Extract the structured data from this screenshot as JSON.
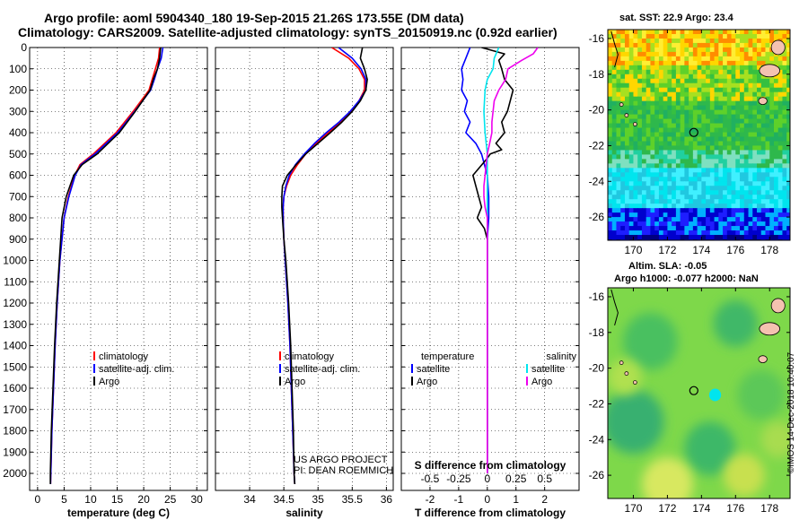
{
  "header": {
    "title_line1": "Argo profile: aoml 5904340_180 19-Sep-2015 21.26S 173.55E (DM data)",
    "title_line2": "Climatology: CARS2009. Satellite-adjusted climatology: synTS_20150919.nc (0.92d earlier)"
  },
  "colors": {
    "climatology": "#ff0000",
    "satellite": "#0000ff",
    "argo": "#000000",
    "satellite_salinity": "#00e5ee",
    "argo_salinity": "#ee00ee"
  },
  "pressure_axis": {
    "ticks": [
      0,
      100,
      200,
      300,
      400,
      500,
      600,
      700,
      800,
      900,
      1000,
      1100,
      1200,
      1300,
      1400,
      1500,
      1600,
      1700,
      1800,
      1900,
      2000
    ],
    "range": [
      0,
      2080
    ]
  },
  "chart_data": [
    {
      "type": "line",
      "id": "temperature",
      "xlabel": "temperature (deg C)",
      "xlim": [
        -1.5,
        32
      ],
      "x_ticks": [
        0,
        5,
        10,
        15,
        20,
        25,
        30
      ],
      "y": [
        0,
        50,
        100,
        150,
        200,
        300,
        400,
        500,
        550,
        600,
        700,
        800,
        1000,
        1200,
        1400,
        1600,
        1800,
        2000,
        2050
      ],
      "series": [
        {
          "name": "climatology",
          "legend": "climatology",
          "color": "#ff0000",
          "x": [
            23.0,
            22.8,
            22.2,
            21.6,
            21.0,
            18.0,
            14.8,
            10.5,
            8.0,
            7.0,
            5.8,
            5.0,
            4.2,
            3.7,
            3.3,
            3.0,
            2.7,
            2.5,
            2.45
          ]
        },
        {
          "name": "satellite-adj. clim.",
          "legend": "satellite-adj. clim.",
          "color": "#0000ff",
          "x": [
            23.6,
            23.3,
            22.6,
            22.0,
            21.3,
            18.3,
            15.1,
            10.8,
            8.2,
            7.1,
            5.9,
            5.0,
            4.2,
            3.7,
            3.3,
            3.0,
            2.7,
            2.5,
            2.45
          ]
        },
        {
          "name": "Argo",
          "legend": "Argo",
          "color": "#000000",
          "x": [
            23.2,
            23.0,
            22.6,
            21.8,
            21.2,
            18.4,
            15.4,
            11.2,
            8.4,
            6.8,
            5.4,
            4.6,
            4.1,
            3.6,
            3.2,
            2.9,
            2.6,
            2.4,
            2.4
          ]
        }
      ]
    },
    {
      "type": "line",
      "id": "salinity",
      "xlabel": "salinity",
      "xlim": [
        33.5,
        36.1
      ],
      "x_ticks": [
        34,
        34.5,
        35,
        35.5,
        36
      ],
      "x_tick_labels": [
        "34",
        "34.5",
        "35",
        "35.5",
        "36"
      ],
      "y": [
        0,
        50,
        100,
        150,
        200,
        250,
        300,
        350,
        400,
        450,
        500,
        550,
        600,
        650,
        700,
        750,
        800,
        900,
        1000,
        1200,
        1400,
        1600,
        1800,
        2000,
        2050
      ],
      "series": [
        {
          "name": "climatology",
          "legend": "climatology",
          "color": "#ff0000",
          "x": [
            35.2,
            35.45,
            35.6,
            35.68,
            35.68,
            35.6,
            35.48,
            35.33,
            35.15,
            34.97,
            34.82,
            34.7,
            34.6,
            34.54,
            34.5,
            34.49,
            34.49,
            34.5,
            34.52,
            34.56,
            34.59,
            34.61,
            34.63,
            34.65,
            34.66
          ]
        },
        {
          "name": "satellite-adj. clim.",
          "legend": "satellite-adj. clim.",
          "color": "#0000ff",
          "x": [
            35.3,
            35.5,
            35.63,
            35.7,
            35.7,
            35.6,
            35.47,
            35.31,
            35.12,
            34.95,
            34.8,
            34.67,
            34.58,
            34.53,
            34.5,
            34.49,
            34.49,
            34.5,
            34.52,
            34.56,
            34.59,
            34.61,
            34.63,
            34.65,
            34.66
          ]
        },
        {
          "name": "Argo",
          "legend": "Argo",
          "color": "#000000",
          "x": [
            35.65,
            35.62,
            35.68,
            35.72,
            35.7,
            35.62,
            35.5,
            35.35,
            35.18,
            35.0,
            34.82,
            34.68,
            34.55,
            34.48,
            34.47,
            34.47,
            34.48,
            34.5,
            34.53,
            34.57,
            34.6,
            34.62,
            34.64,
            34.65,
            34.66
          ]
        }
      ],
      "credits": [
        "US ARGO PROJECT",
        "PI: DEAN ROEMMICH"
      ]
    },
    {
      "type": "line",
      "id": "differences",
      "xlabel": "T difference from climatology",
      "xlim": [
        -3,
        3.2
      ],
      "x_ticks": [
        -2,
        -1,
        0,
        1,
        2
      ],
      "top_xlabel": "S difference from climatology",
      "top_ticks": [
        {
          "value": -0.5,
          "label": "-0.5"
        },
        {
          "value": -0.25,
          "label": "-0.25"
        },
        {
          "value": 0,
          "label": "0"
        },
        {
          "value": 0.25,
          "label": "0.25"
        },
        {
          "value": 0.5,
          "label": "0.5"
        }
      ],
      "s_scale": 4,
      "temperature_legend": {
        "title": "temperature",
        "satellite": "satellite",
        "argo": "Argo"
      },
      "salinity_legend": {
        "title": "salinity",
        "satellite": "satellite",
        "argo": "Argo"
      },
      "series": [
        {
          "name": "T satellite",
          "quantity": "T",
          "legend": "satellite",
          "color": "#0000ff",
          "y": [
            0,
            50,
            100,
            150,
            200,
            250,
            300,
            350,
            400,
            450,
            500,
            600,
            700,
            800,
            900,
            1000,
            1200,
            1500,
            2000
          ],
          "x": [
            -0.6,
            -0.75,
            -0.9,
            -0.85,
            -0.9,
            -0.7,
            -0.8,
            -0.6,
            -0.75,
            -0.4,
            -0.2,
            0.0,
            0.05,
            0.05,
            0.0,
            0.0,
            0.0,
            0.0,
            0.0
          ]
        },
        {
          "name": "T Argo",
          "quantity": "T",
          "legend": "Argo",
          "color": "#000000",
          "y": [
            0,
            30,
            60,
            100,
            150,
            200,
            300,
            350,
            400,
            450,
            480,
            500,
            520,
            600,
            700,
            750,
            800,
            850,
            900,
            1000,
            1200,
            1500,
            2000
          ],
          "x": [
            -0.2,
            0.6,
            0.4,
            0.5,
            0.6,
            0.9,
            0.7,
            0.5,
            0.6,
            0.3,
            0.5,
            0.1,
            0.0,
            -0.5,
            -0.3,
            -0.2,
            -0.35,
            -0.1,
            0.0,
            0.0,
            0.0,
            0.0,
            0.0
          ]
        },
        {
          "name": "S satellite",
          "quantity": "S",
          "legend": "satellite",
          "color": "#00e5ee",
          "y": [
            0,
            50,
            100,
            150,
            200,
            300,
            400,
            500,
            600,
            700,
            800,
            1000,
            1200,
            1500,
            2000
          ],
          "x": [
            0.1,
            0.06,
            0.05,
            0.0,
            -0.02,
            -0.03,
            -0.02,
            0.0,
            0.0,
            0.0,
            0.0,
            0.0,
            0.0,
            0.0,
            0.0
          ]
        },
        {
          "name": "S Argo",
          "quantity": "S",
          "legend": "Argo",
          "color": "#ee00ee",
          "y": [
            0,
            30,
            60,
            100,
            150,
            200,
            250,
            300,
            350,
            400,
            450,
            500,
            550,
            600,
            650,
            700,
            750,
            800,
            900,
            1000,
            1200,
            1500,
            2000
          ],
          "x": [
            0.44,
            0.4,
            0.3,
            0.18,
            0.16,
            0.1,
            0.06,
            0.05,
            0.04,
            0.04,
            0.02,
            0.0,
            -0.01,
            -0.02,
            -0.03,
            -0.03,
            -0.02,
            0.0,
            0.0,
            0.0,
            0.0,
            0.0,
            0.0
          ]
        }
      ]
    },
    {
      "type": "heatmap",
      "id": "sst-map",
      "title": "sat. SST: 22.9 Argo: 23.4",
      "xlim": [
        168.5,
        179.2
      ],
      "ylim": [
        -27.3,
        -15.5
      ],
      "x_ticks": [
        170,
        172,
        174,
        176,
        178
      ],
      "y_ticks": [
        -16,
        -18,
        -20,
        -22,
        -24,
        -26
      ],
      "argo_position": [
        173.55,
        -21.26
      ],
      "color_bands": [
        {
          "lat_range": [
            -17.5,
            -15.5
          ],
          "colors": [
            "#ff8c00",
            "#ffd700",
            "#ffee33",
            "#a8e020"
          ]
        },
        {
          "lat_range": [
            -19.5,
            -17.5
          ],
          "colors": [
            "#a8e020",
            "#5ed12a",
            "#ffd700",
            "#36c040"
          ]
        },
        {
          "lat_range": [
            -22.3,
            -19.5
          ],
          "colors": [
            "#2eb84c",
            "#36c040",
            "#20b060",
            "#5ed12a"
          ]
        },
        {
          "lat_range": [
            -23.2,
            -22.3
          ],
          "colors": [
            "#20d0a0",
            "#7fe0c0",
            "#2eb84c"
          ]
        },
        {
          "lat_range": [
            -25.6,
            -23.2
          ],
          "colors": [
            "#00e5ee",
            "#40f0ff",
            "#20c8e0"
          ]
        },
        {
          "lat_range": [
            -26.9,
            -25.6
          ],
          "colors": [
            "#0000cd",
            "#1e1eff",
            "#00b0ff"
          ]
        },
        {
          "lat_range": [
            -27.3,
            -26.9
          ],
          "colors": [
            "#000080",
            "#0000cd"
          ]
        }
      ]
    },
    {
      "type": "heatmap",
      "id": "sla-map",
      "title_line1": "Altim. SLA: -0.05",
      "title_line2": "Argo h1000: -0.077 h2000: NaN",
      "xlim": [
        168.5,
        179.2
      ],
      "ylim": [
        -27.3,
        -15.5
      ],
      "x_ticks": [
        170,
        172,
        174,
        176,
        178
      ],
      "y_ticks": [
        -16,
        -18,
        -20,
        -22,
        -24,
        -26
      ],
      "argo_position": [
        173.55,
        -21.26
      ],
      "base_color": "#7ed84a",
      "patches": [
        {
          "lon": 171.0,
          "lat": -18.5,
          "r": 1.6,
          "color": "#48c060"
        },
        {
          "lon": 176.0,
          "lat": -17.5,
          "r": 1.3,
          "color": "#40b868"
        },
        {
          "lon": 170.0,
          "lat": -23.0,
          "r": 1.8,
          "color": "#38b070"
        },
        {
          "lon": 174.5,
          "lat": -24.5,
          "r": 1.5,
          "color": "#3cb868"
        },
        {
          "lon": 177.5,
          "lat": -21.5,
          "r": 1.4,
          "color": "#5cc858"
        },
        {
          "lon": 172.0,
          "lat": -26.5,
          "r": 1.5,
          "color": "#d8e860"
        },
        {
          "lon": 176.5,
          "lat": -26.0,
          "r": 1.2,
          "color": "#c8e050"
        },
        {
          "lon": 169.5,
          "lat": -20.5,
          "r": 1.0,
          "color": "#b0e050"
        },
        {
          "lon": 174.8,
          "lat": -21.5,
          "r": 0.35,
          "color": "#00e5ee"
        },
        {
          "lon": 178.5,
          "lat": -24.0,
          "r": 1.0,
          "color": "#a8dc50"
        }
      ]
    }
  ],
  "watermark": "©IMOS 14-Dec-2018 10:40:07"
}
